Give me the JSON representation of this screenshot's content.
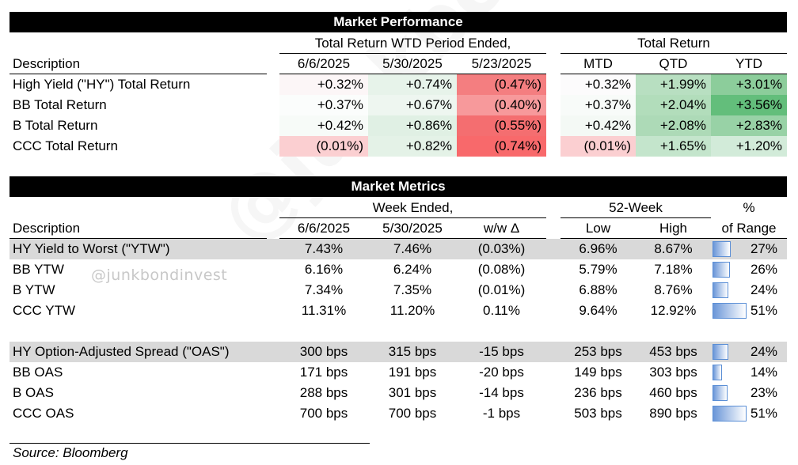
{
  "performance": {
    "title": "Market Performance",
    "group1_label": "Total Return WTD Period Ended,",
    "group2_label": "Total Return",
    "columns": {
      "description": "Description",
      "w1": "6/6/2025",
      "w2": "5/30/2025",
      "w3": "5/23/2025",
      "mtd": "MTD",
      "qtd": "QTD",
      "ytd": "YTD"
    },
    "rows": [
      {
        "label": "High Yield (\"HY\") Total Return",
        "w1": "+0.32%",
        "w2": "+0.74%",
        "w3": "(0.47%)",
        "mtd": "+0.32%",
        "qtd": "+1.99%",
        "ytd": "+3.01%",
        "colors": {
          "w1": "#fcf6f7",
          "w2": "#e7f3ea",
          "w3": "#f47e80",
          "mtd": "#fcfbfc",
          "qtd": "#b8dfc1",
          "ytd": "#8ccd9b"
        }
      },
      {
        "label": "BB Total Return",
        "w1": "+0.37%",
        "w2": "+0.67%",
        "w3": "(0.40%)",
        "mtd": "+0.37%",
        "qtd": "+2.04%",
        "ytd": "+3.56%",
        "colors": {
          "w1": "#fbfdfc",
          "w2": "#eef6f0",
          "w3": "#f7999b",
          "mtd": "#f8fbf9",
          "qtd": "#b2ddbb",
          "ytd": "#63be7b"
        }
      },
      {
        "label": "B Total Return",
        "w1": "+0.42%",
        "w2": "+0.86%",
        "w3": "(0.55%)",
        "mtd": "+0.42%",
        "qtd": "+2.08%",
        "ytd": "+2.83%",
        "colors": {
          "w1": "#f7fbf8",
          "w2": "#e0f0e4",
          "w3": "#f46e70",
          "mtd": "#f4f9f5",
          "qtd": "#addab7",
          "ytd": "#98d2a6"
        }
      },
      {
        "label": "CCC Total Return",
        "w1": "(0.01%)",
        "w2": "+0.82%",
        "w3": "(0.74%)",
        "mtd": "(0.01%)",
        "qtd": "+1.65%",
        "ytd": "+1.20%",
        "colors": {
          "w1": "#fbcfd1",
          "w2": "#e4f2e7",
          "w3": "#f8696b",
          "mtd": "#fbcfd1",
          "qtd": "#c4e5cc",
          "ytd": "#d2ebd9"
        }
      }
    ]
  },
  "metrics": {
    "title": "Market Metrics",
    "week_label": "Week Ended,",
    "week52_label": "52-Week",
    "pct_label_top": "%",
    "pct_label_bottom": "of Range",
    "columns": {
      "description": "Description",
      "w1": "6/6/2025",
      "w2": "5/30/2025",
      "chg": "w/w Δ",
      "low": "Low",
      "high": "High"
    },
    "rows": [
      {
        "label": "HY Yield to Worst (\"YTW\")",
        "w1": "7.43%",
        "w2": "7.46%",
        "chg": "(0.03%)",
        "low": "6.96%",
        "high": "8.67%",
        "pct": "27%",
        "pct_value": 0.27,
        "shaded": true
      },
      {
        "label": "BB YTW",
        "w1": "6.16%",
        "w2": "6.24%",
        "chg": "(0.08%)",
        "low": "5.79%",
        "high": "7.18%",
        "pct": "26%",
        "pct_value": 0.26,
        "shaded": false
      },
      {
        "label": "B YTW",
        "w1": "7.34%",
        "w2": "7.35%",
        "chg": "(0.01%)",
        "low": "6.88%",
        "high": "8.76%",
        "pct": "24%",
        "pct_value": 0.24,
        "shaded": false
      },
      {
        "label": "CCC YTW",
        "w1": "11.31%",
        "w2": "11.20%",
        "chg": "0.11%",
        "low": "9.64%",
        "high": "12.92%",
        "pct": "51%",
        "pct_value": 0.51,
        "shaded": false
      },
      {
        "label": "HY Option-Adjusted Spread (\"OAS\")",
        "w1": "300 bps",
        "w2": "315 bps",
        "chg": "-15 bps",
        "low": "253 bps",
        "high": "453 bps",
        "pct": "24%",
        "pct_value": 0.24,
        "shaded": true
      },
      {
        "label": "BB OAS",
        "w1": "171 bps",
        "w2": "191 bps",
        "chg": "-20 bps",
        "low": "149 bps",
        "high": "303 bps",
        "pct": "14%",
        "pct_value": 0.14,
        "shaded": false
      },
      {
        "label": "B OAS",
        "w1": "288 bps",
        "w2": "301 bps",
        "chg": "-14 bps",
        "low": "236 bps",
        "high": "460 bps",
        "pct": "23%",
        "pct_value": 0.23,
        "shaded": false
      },
      {
        "label": "CCC OAS",
        "w1": "700 bps",
        "w2": "700 bps",
        "chg": "-1 bps",
        "low": "503 bps",
        "high": "890 bps",
        "pct": "51%",
        "pct_value": 0.51,
        "shaded": false
      }
    ]
  },
  "watermark_handle": "@junkbondinvest",
  "watermark_large": "@junkbondinvest",
  "source": "Source: Bloomberg"
}
